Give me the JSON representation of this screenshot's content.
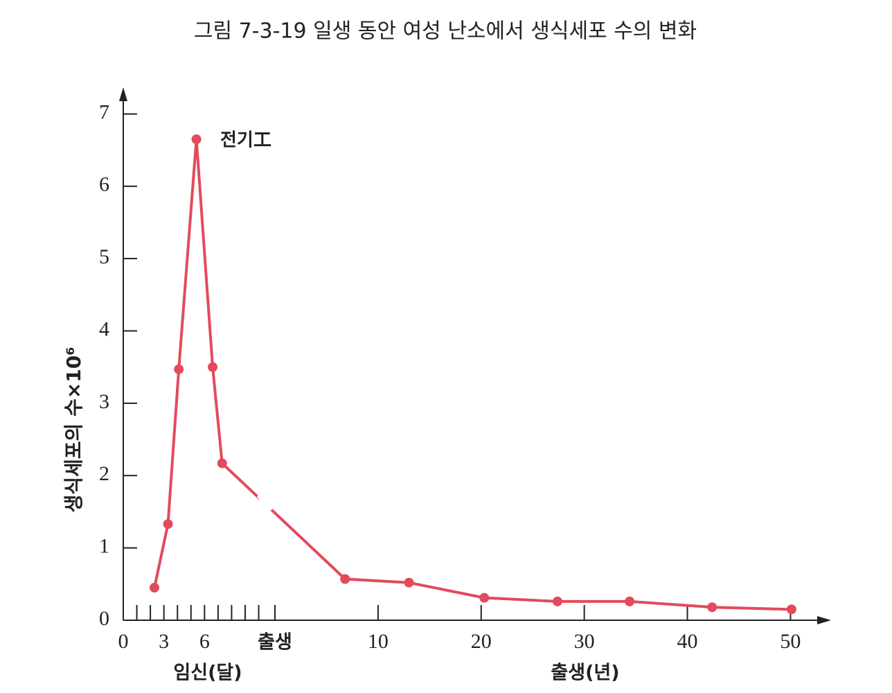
{
  "chart_data": {
    "type": "line",
    "title": "그림 7-3-19 일생 동안 여성 난소에서 생식세포 수의 변화",
    "ylabel": "생식세포의 수×10⁶",
    "xlabel": "임신(달)",
    "x2label": "출생(년)",
    "annotation": "전기工",
    "ylim": [
      0,
      7.33
    ],
    "yticks": [
      0,
      1,
      2,
      3,
      4,
      5,
      6,
      7
    ],
    "xlim": [
      0,
      11.2
    ],
    "xticks": [
      0,
      3,
      6
    ],
    "minor_xticks": [
      1,
      2,
      4,
      5,
      7,
      8,
      9,
      10
    ],
    "x2lim": [
      0,
      53.6
    ],
    "x2ticks": [
      {
        "value": 0,
        "label": "출생"
      },
      10,
      20,
      30,
      40,
      50
    ],
    "series": [
      {
        "color": "#e34a5c",
        "axis": "x",
        "x": [
          2.3,
          3.3,
          4.1,
          5.4,
          6.6,
          7.3
        ],
        "values": [
          0.45,
          1.33,
          3.47,
          6.65,
          3.5,
          2.17
        ]
      },
      {
        "color": "#e34a5c",
        "axis": "x2",
        "x": [
          6.8,
          13.0,
          20.3,
          27.4,
          34.4,
          42.4,
          50.1
        ],
        "values": [
          0.57,
          0.52,
          0.31,
          0.26,
          0.26,
          0.18,
          0.15
        ]
      }
    ]
  }
}
